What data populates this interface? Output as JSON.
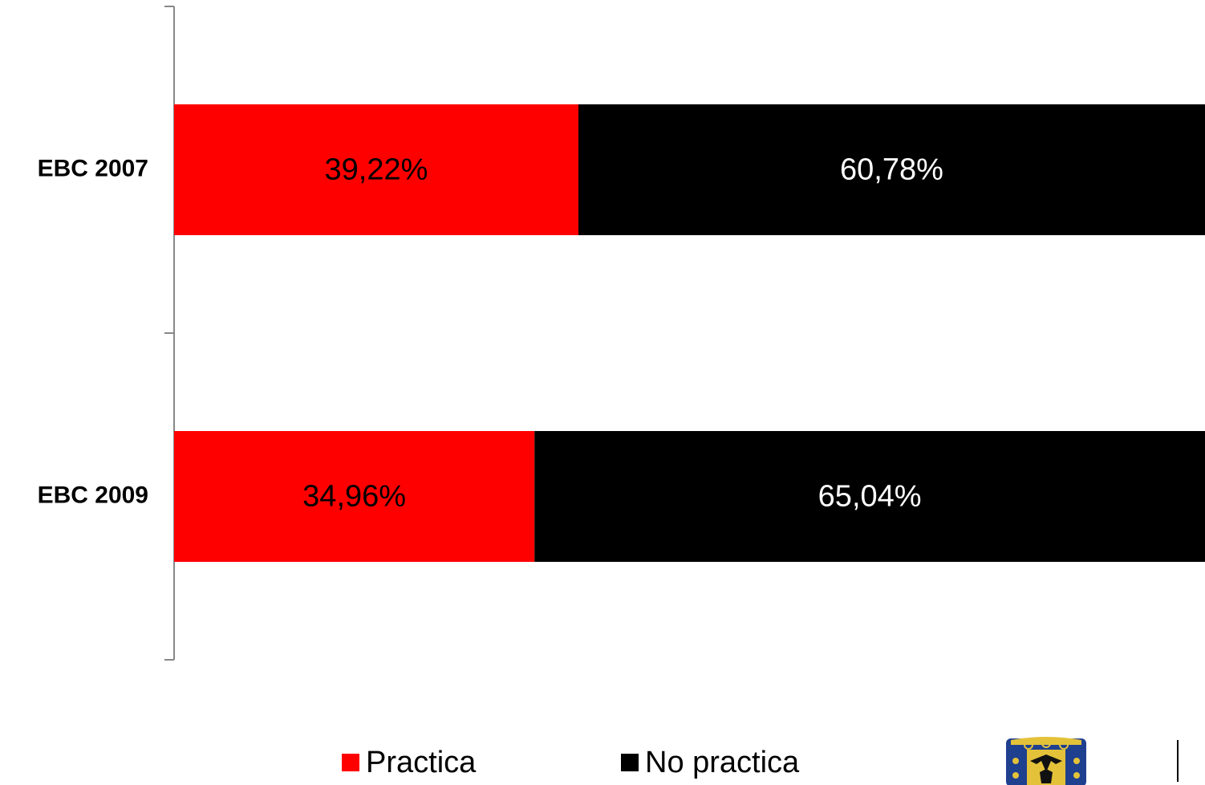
{
  "chart_data": {
    "type": "bar",
    "orientation": "horizontal",
    "stacked": true,
    "categories": [
      "EBC 2007",
      "EBC 2009"
    ],
    "series": [
      {
        "name": "Practica",
        "values": [
          39.22,
          34.96
        ],
        "labels": [
          "39,22%",
          "34,96%"
        ],
        "color": "#ff0000",
        "label_color": "#000000"
      },
      {
        "name": "No practica",
        "values": [
          60.78,
          65.04
        ],
        "labels": [
          "60,78%",
          "65,04%"
        ],
        "color": "#000000",
        "label_color": "#ffffff"
      }
    ],
    "xlim": [
      0,
      100
    ],
    "unit": "%",
    "grid": false,
    "legend_position": "bottom"
  },
  "seal": {
    "icon": "coat-of-arms-icon"
  }
}
